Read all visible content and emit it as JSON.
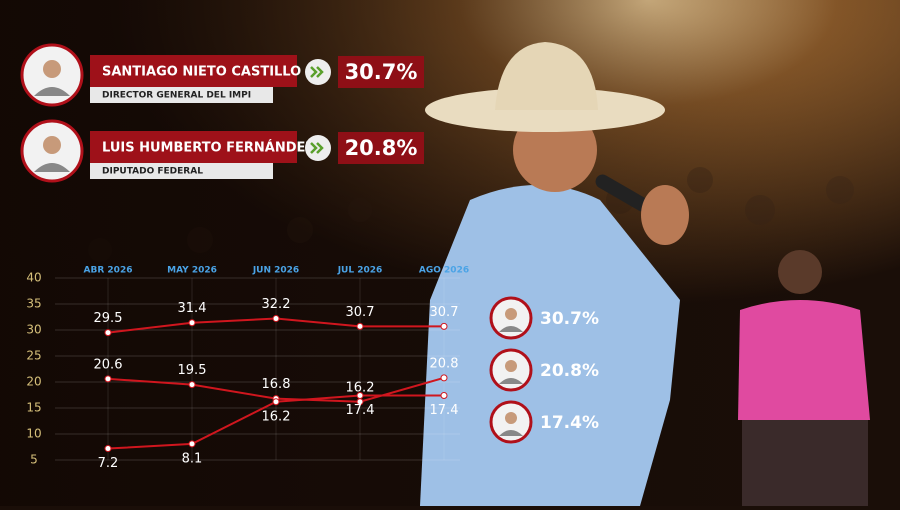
{
  "candidates": [
    {
      "name": "SANTIAGO NIETO CASTILLO",
      "role": "DIRECTOR GENERAL DEL IMPI",
      "percent": "30.7%"
    },
    {
      "name": "LUIS HUMBERTO FERNÁNDEZ",
      "role": "DIPUTADO FEDERAL",
      "percent": "20.8%"
    }
  ],
  "chart_data": {
    "type": "line",
    "categories": [
      "ABR 2026",
      "MAY 2026",
      "JUN 2026",
      "JUL 2026",
      "AGO 2026"
    ],
    "series": [
      {
        "color": "#d0161e",
        "values": [
          29.5,
          31.4,
          32.2,
          30.7,
          30.7
        ],
        "end_label": "30.7%"
      },
      {
        "color": "#d0161e",
        "values": [
          20.6,
          19.5,
          16.8,
          16.2,
          20.8
        ],
        "end_label": "20.8%"
      },
      {
        "color": "#d0161e",
        "values": [
          7.2,
          8.1,
          16.2,
          17.4,
          17.4
        ],
        "end_label": "17.4%"
      }
    ],
    "ylim": [
      5,
      40
    ],
    "yticks": [
      5,
      10,
      15,
      20,
      25,
      30,
      35,
      40
    ],
    "grid": true
  }
}
